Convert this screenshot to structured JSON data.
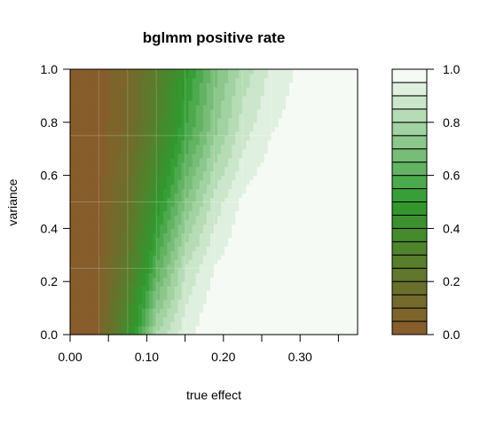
{
  "chart_data": {
    "type": "heatmap",
    "title": "bglmm positive rate",
    "xlabel": "true effect",
    "ylabel": "variance",
    "xlim": [
      0.0,
      0.375
    ],
    "ylim": [
      0.0,
      1.0
    ],
    "x_ticks": [
      0.0,
      0.05,
      0.1,
      0.15,
      0.2,
      0.25,
      0.3,
      0.35
    ],
    "x_tick_labels": [
      "0.00",
      "",
      "0.10",
      "",
      "0.20",
      "",
      "0.30",
      ""
    ],
    "y_ticks": [
      0.0,
      0.2,
      0.4,
      0.6,
      0.8,
      1.0
    ],
    "y_tick_labels": [
      "0.0",
      "0.2",
      "0.4",
      "0.6",
      "0.8",
      "1.0"
    ],
    "legend": {
      "position": "right",
      "range": [
        0.0,
        1.0
      ],
      "levels": 20,
      "tick_values": [
        0.0,
        0.2,
        0.4,
        0.6,
        0.8,
        1.0
      ],
      "tick_labels": [
        "0.0",
        "0.2",
        "0.4",
        "0.6",
        "0.8",
        "1.0"
      ]
    },
    "color_scale": {
      "low": "#8b5a2b",
      "mid": "#2e9a2e",
      "high": "#ffffff"
    },
    "grid_x": [
      0.0,
      0.0375,
      0.075,
      0.1125,
      0.15,
      0.1875,
      0.225,
      0.2625,
      0.3,
      0.3375,
      0.375
    ],
    "grid_y": [
      0.0,
      0.25,
      0.5,
      0.75,
      1.0
    ],
    "z": [
      [
        0.0,
        0.05,
        0.4,
        0.8,
        0.93,
        1.0,
        1.0,
        1.0,
        1.0,
        1.0,
        1.0
      ],
      [
        0.0,
        0.04,
        0.25,
        0.6,
        0.85,
        0.95,
        1.0,
        1.0,
        1.0,
        1.0,
        1.0
      ],
      [
        0.0,
        0.03,
        0.18,
        0.45,
        0.7,
        0.87,
        0.96,
        1.0,
        1.0,
        1.0,
        1.0
      ],
      [
        0.0,
        0.02,
        0.12,
        0.32,
        0.55,
        0.74,
        0.88,
        0.95,
        0.98,
        1.0,
        1.0
      ],
      [
        0.0,
        0.02,
        0.1,
        0.27,
        0.48,
        0.67,
        0.82,
        0.91,
        0.96,
        1.0,
        1.0
      ]
    ]
  }
}
